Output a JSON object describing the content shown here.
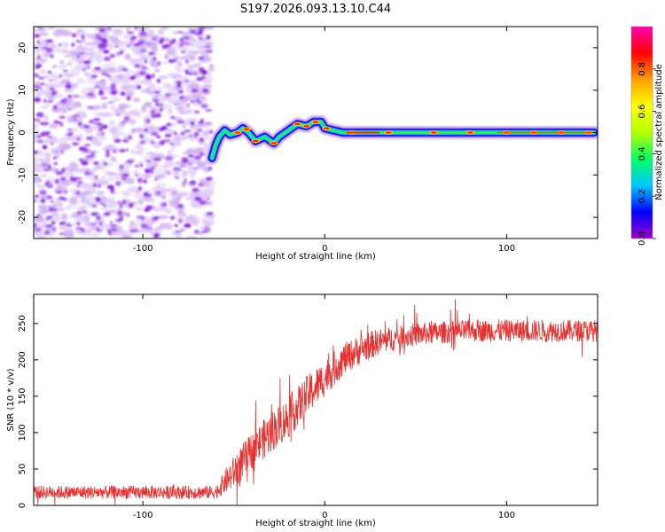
{
  "title": "S197.2026.093.13.10.C44",
  "chart_data": [
    {
      "type": "heatmap",
      "title": "S197.2026.093.13.10.C44",
      "xlabel": "Height of straight line (km)",
      "ylabel": "Frequency (Hz)",
      "xlim": [
        -160,
        150
      ],
      "ylim": [
        -25,
        25
      ],
      "xticks": [
        -100,
        0,
        100
      ],
      "yticks": [
        -20,
        -10,
        0,
        10,
        20
      ],
      "colorbar": {
        "label": "Normalized spectral amplitude",
        "range": [
          0,
          1
        ],
        "ticks": [
          0.0,
          0.2,
          0.4,
          0.6,
          0.8
        ],
        "colors": [
          "#a000c8",
          "#0000ff",
          "#00c8ff",
          "#00ff64",
          "#b4ff00",
          "#ffff00",
          "#ffa000",
          "#ff0000",
          "#ff00b4"
        ]
      },
      "noise_region": {
        "x": [
          -160,
          -62
        ],
        "y": [
          -25,
          25
        ],
        "amplitude": [
          0.0,
          0.15
        ]
      },
      "ridge": [
        {
          "x": -62,
          "y": -6
        },
        {
          "x": -60,
          "y": -3
        },
        {
          "x": -58,
          "y": -1
        },
        {
          "x": -55,
          "y": 0.5
        },
        {
          "x": -52,
          "y": -0.5
        },
        {
          "x": -48,
          "y": 0
        },
        {
          "x": -45,
          "y": 1
        },
        {
          "x": -42,
          "y": 0
        },
        {
          "x": -38,
          "y": -2
        },
        {
          "x": -33,
          "y": -1
        },
        {
          "x": -28,
          "y": -2.5
        },
        {
          "x": -25,
          "y": -1
        },
        {
          "x": -20,
          "y": 0.5
        },
        {
          "x": -15,
          "y": 2
        },
        {
          "x": -10,
          "y": 1.5
        },
        {
          "x": -6,
          "y": 2.5
        },
        {
          "x": -2,
          "y": 2.5
        },
        {
          "x": 0,
          "y": 1
        },
        {
          "x": 5,
          "y": 0.5
        },
        {
          "x": 10,
          "y": 0
        },
        {
          "x": 20,
          "y": 0
        },
        {
          "x": 50,
          "y": 0
        },
        {
          "x": 100,
          "y": 0
        },
        {
          "x": 148,
          "y": 0
        }
      ]
    },
    {
      "type": "line",
      "xlabel": "Height of straight line (km)",
      "ylabel": "SNR (10 * v/v)",
      "xlim": [
        -160,
        150
      ],
      "ylim": [
        0,
        290
      ],
      "xticks": [
        -100,
        0,
        100
      ],
      "yticks": [
        0,
        50,
        100,
        150,
        200,
        250
      ],
      "series": [
        {
          "name": "SNR",
          "color": "#e83030",
          "envelope_x": [
            -160,
            -60,
            -52,
            -45,
            -40,
            -30,
            -20,
            -10,
            0,
            10,
            20,
            30,
            40,
            50,
            60,
            80,
            100,
            120,
            150
          ],
          "envelope_mean": [
            18,
            18,
            40,
            60,
            75,
            100,
            120,
            150,
            175,
            200,
            215,
            225,
            230,
            235,
            237,
            240,
            240,
            240,
            240
          ],
          "envelope_spread": [
            9,
            9,
            20,
            25,
            25,
            28,
            28,
            28,
            25,
            22,
            20,
            18,
            16,
            16,
            15,
            15,
            15,
            15,
            15
          ]
        }
      ]
    }
  ]
}
